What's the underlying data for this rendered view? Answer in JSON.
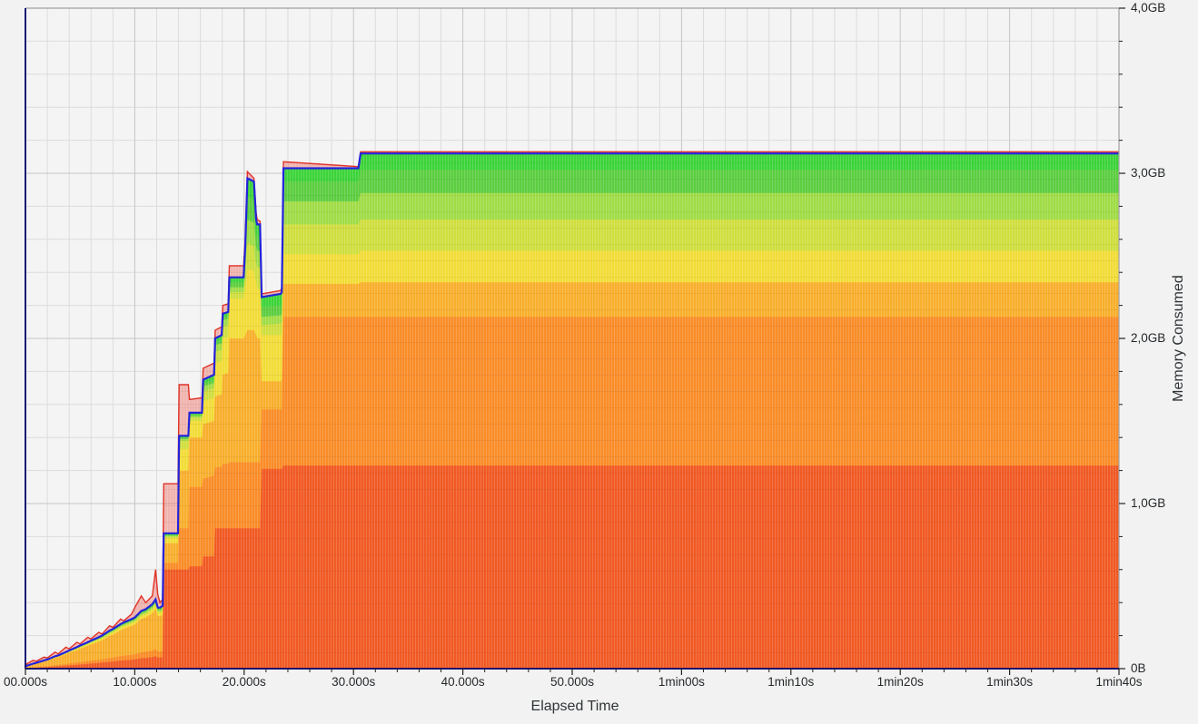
{
  "window": {
    "background": "#f2f2f2",
    "plot_background": "#f4f4f4"
  },
  "axes": {
    "x": {
      "title": "Elapsed Time",
      "range_s": [
        0,
        100
      ],
      "major_tick_seconds": [
        0,
        10,
        20,
        30,
        40,
        50,
        60,
        70,
        80,
        90,
        100
      ],
      "tick_labels": [
        "00.000s",
        "10.000s",
        "20.000s",
        "30.000s",
        "40.000s",
        "50.000s",
        "1min00s",
        "1min10s",
        "1min20s",
        "1min30s",
        "1min40s"
      ],
      "minor_step_s": 2
    },
    "y": {
      "title": "Memory Consumed",
      "range_gb": [
        0,
        4
      ],
      "major_tick_gb": [
        0,
        1,
        2,
        3,
        4
      ],
      "tick_labels": [
        "0B",
        "1,0GB",
        "2,0GB",
        "3,0GB",
        "4,0GB"
      ],
      "minor_step_gb": 0.2
    }
  },
  "style": {
    "grid_minor_color": "#dcdcdc",
    "grid_major_color": "#c6c6c6",
    "frame_left_bottom_color": "#000066",
    "frame_top_right_color": "#a0a0a0",
    "tick_color": "#222222",
    "total_line_color": "#2323dc",
    "peak_line_color": "#e03228",
    "peak_fill_color": "rgba(235,75,60,0.38)"
  },
  "chart_data": {
    "type": "area",
    "stacked": true,
    "title": "",
    "xlabel": "Elapsed Time",
    "ylabel": "Memory Consumed",
    "x_unit": "seconds",
    "y_unit": "GB",
    "xlim_s": [
      0,
      100
    ],
    "ylim_gb": [
      0,
      4
    ],
    "grid": true,
    "legend": "none",
    "final_plateau_total_gb": 3.12,
    "peak_spike_gb": 3.01,
    "keyframes_s": [
      0,
      0.7,
      1,
      1.7,
      2,
      2.7,
      3,
      3.7,
      4,
      4.7,
      5,
      5.7,
      6,
      6.7,
      7,
      7.7,
      8,
      8.7,
      9,
      9.7,
      10,
      10.6,
      11,
      11.6,
      11.9,
      12.1,
      12.3,
      12.55,
      12.65,
      13.95,
      14.05,
      14.9,
      15.0,
      16.15,
      16.25,
      17.25,
      17.35,
      17.95,
      18.05,
      18.55,
      18.65,
      19.95,
      20.1,
      20.3,
      20.9,
      21.1,
      21.2,
      21.45,
      21.6,
      23.35,
      23.45,
      23.6,
      30.45,
      30.65,
      100
    ],
    "total_line": {
      "name": "memory-consumed-total",
      "color": "#2323dc",
      "values_gb": [
        0.015,
        0.03,
        0.035,
        0.05,
        0.055,
        0.075,
        0.08,
        0.1,
        0.11,
        0.13,
        0.14,
        0.16,
        0.17,
        0.19,
        0.2,
        0.23,
        0.24,
        0.27,
        0.28,
        0.3,
        0.31,
        0.35,
        0.36,
        0.39,
        0.42,
        0.37,
        0.37,
        0.38,
        0.82,
        0.82,
        1.41,
        1.41,
        1.55,
        1.55,
        1.75,
        1.78,
        2.0,
        2.02,
        2.15,
        2.16,
        2.37,
        2.37,
        2.55,
        2.97,
        2.95,
        2.72,
        2.69,
        2.69,
        2.25,
        2.27,
        2.28,
        3.03,
        3.03,
        3.12,
        3.12
      ]
    },
    "peak_line": {
      "name": "memory-peak-envelope",
      "color": "#e03228",
      "fill": "rgba(235,75,60,0.38)",
      "values_gb": [
        0.025,
        0.05,
        0.045,
        0.07,
        0.065,
        0.1,
        0.09,
        0.13,
        0.12,
        0.16,
        0.15,
        0.19,
        0.18,
        0.22,
        0.21,
        0.26,
        0.25,
        0.3,
        0.29,
        0.33,
        0.37,
        0.44,
        0.4,
        0.44,
        0.6,
        0.45,
        0.4,
        0.42,
        1.12,
        1.12,
        1.72,
        1.72,
        1.63,
        1.64,
        1.82,
        1.85,
        2.05,
        2.07,
        2.2,
        2.21,
        2.44,
        2.44,
        2.6,
        3.01,
        2.97,
        2.76,
        2.72,
        2.71,
        2.27,
        2.29,
        2.31,
        3.07,
        3.04,
        3.13,
        3.13
      ]
    },
    "ramp_end_index": 27,
    "ramp_cumulative_fractions": [
      0.18,
      0.28,
      0.86,
      0.91,
      0.935,
      0.955,
      0.975,
      1.0
    ],
    "bands_bottom_to_top": [
      {
        "name": "stack-band-1-red-orange",
        "color": "#f15822",
        "cum_gb_after_ramp": [
          0.6,
          0.6,
          0.6,
          0.6,
          0.62,
          0.62,
          0.68,
          0.68,
          0.85,
          0.85,
          0.85,
          0.85,
          0.85,
          0.85,
          0.85,
          0.85,
          0.85,
          0.85,
          0.85,
          0.85,
          1.21,
          1.21,
          1.21,
          1.23,
          1.23,
          1.23,
          1.23
        ]
      },
      {
        "name": "stack-band-2-orange",
        "color": "#f98c27",
        "cum_gb_after_ramp": [
          0.64,
          0.64,
          0.85,
          0.85,
          1.1,
          1.1,
          1.15,
          1.17,
          1.22,
          1.22,
          1.24,
          1.24,
          1.25,
          1.25,
          1.25,
          1.25,
          1.25,
          1.25,
          1.25,
          1.25,
          1.57,
          1.57,
          1.57,
          2.13,
          2.13,
          2.13,
          2.13
        ]
      },
      {
        "name": "stack-band-3-amber",
        "color": "#f8ae2b",
        "cum_gb_after_ramp": [
          0.76,
          0.76,
          1.2,
          1.2,
          1.4,
          1.4,
          1.48,
          1.5,
          1.65,
          1.66,
          1.78,
          1.79,
          2.0,
          2.0,
          2.02,
          2.05,
          2.05,
          2.02,
          2.0,
          2.0,
          1.74,
          1.74,
          1.75,
          2.33,
          2.33,
          2.34,
          2.34
        ]
      },
      {
        "name": "stack-band-4-yellow",
        "color": "#f2dc36",
        "cum_gb_after_ramp": [
          0.79,
          0.79,
          1.33,
          1.33,
          1.5,
          1.5,
          1.62,
          1.64,
          1.85,
          1.86,
          2.0,
          2.01,
          2.24,
          2.24,
          2.3,
          2.42,
          2.41,
          2.33,
          2.3,
          2.3,
          2.02,
          2.02,
          2.03,
          2.51,
          2.51,
          2.53,
          2.53
        ]
      },
      {
        "name": "stack-band-5-yellow-olive",
        "color": "#cfde3d",
        "cum_gb_after_ramp": [
          0.8,
          0.8,
          1.38,
          1.38,
          1.52,
          1.52,
          1.68,
          1.7,
          1.92,
          1.93,
          2.07,
          2.08,
          2.28,
          2.28,
          2.38,
          2.58,
          2.56,
          2.45,
          2.43,
          2.43,
          2.08,
          2.09,
          2.1,
          2.69,
          2.69,
          2.72,
          2.72
        ]
      },
      {
        "name": "stack-band-6-yellow-green",
        "color": "#9fdc45",
        "cum_gb_after_ramp": [
          0.805,
          0.805,
          1.39,
          1.39,
          1.53,
          1.53,
          1.71,
          1.73,
          1.96,
          1.97,
          2.11,
          2.12,
          2.31,
          2.31,
          2.44,
          2.72,
          2.7,
          2.55,
          2.53,
          2.53,
          2.13,
          2.14,
          2.15,
          2.83,
          2.83,
          2.88,
          2.88
        ]
      },
      {
        "name": "stack-band-7-green",
        "color": "#5acd3f",
        "cum_gb_after_ramp": [
          0.81,
          0.81,
          1.4,
          1.4,
          1.54,
          1.54,
          1.73,
          1.75,
          1.98,
          1.99,
          2.13,
          2.14,
          2.34,
          2.34,
          2.5,
          2.86,
          2.84,
          2.64,
          2.62,
          2.62,
          2.19,
          2.2,
          2.21,
          2.95,
          2.95,
          3.02,
          3.02
        ]
      },
      {
        "name": "stack-band-8-bright-green",
        "color": "#3bd438",
        "cum_gb_after_ramp": "same-as-total"
      }
    ]
  }
}
